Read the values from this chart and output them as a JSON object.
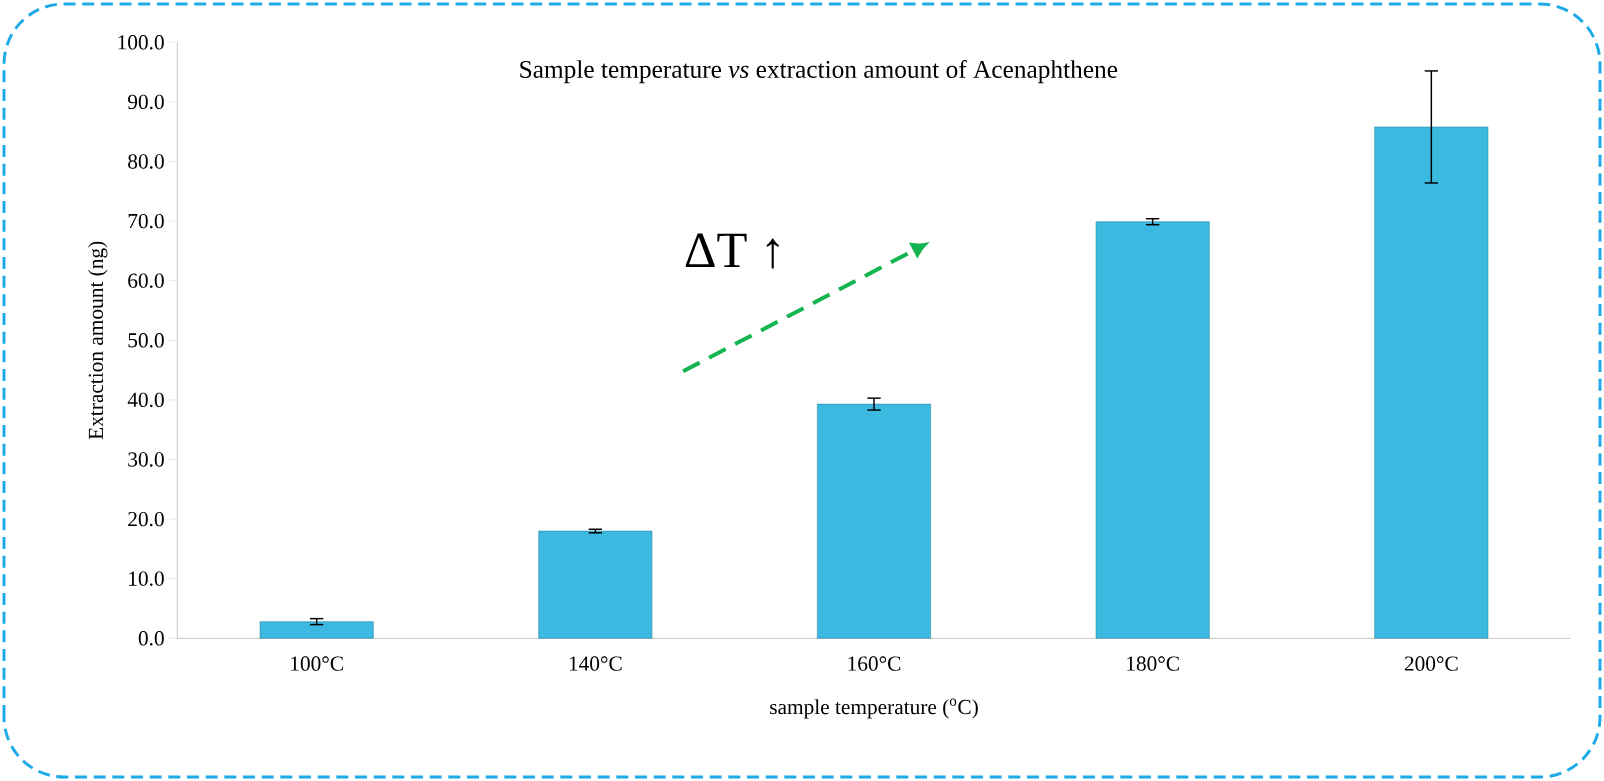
{
  "chart_data": {
    "type": "bar",
    "title": "Sample temperature *vs* extraction amount of Acenaphthene",
    "xlabel": "sample temperature ($^{o}$C)",
    "ylabel": "Extraction amount (ng)",
    "categories": [
      "100°C",
      "140°C",
      "160°C",
      "180°C",
      "200°C"
    ],
    "values": [
      2.8,
      18.0,
      39.3,
      69.9,
      85.8
    ],
    "errors": [
      0.5,
      0.3,
      1.0,
      0.5,
      9.4
    ],
    "color": "#3bb9e0",
    "ylim": [
      0,
      100
    ],
    "yticks": [
      {
        "value": 0,
        "label": "0.0"
      },
      {
        "value": 10,
        "label": "10.0"
      },
      {
        "value": 20,
        "label": "20.0"
      },
      {
        "value": 30,
        "label": "30.0"
      },
      {
        "value": 40,
        "label": "40.0"
      },
      {
        "value": 50,
        "label": "50.0"
      },
      {
        "value": 60,
        "label": "60.0"
      },
      {
        "value": 70,
        "label": "70.0"
      },
      {
        "value": 80,
        "label": "80.0"
      },
      {
        "value": 90,
        "label": "90.0"
      },
      {
        "value": 100,
        "label": "100.0"
      }
    ],
    "annotations": [
      "ΔT ↑"
    ],
    "grid": false
  }
}
